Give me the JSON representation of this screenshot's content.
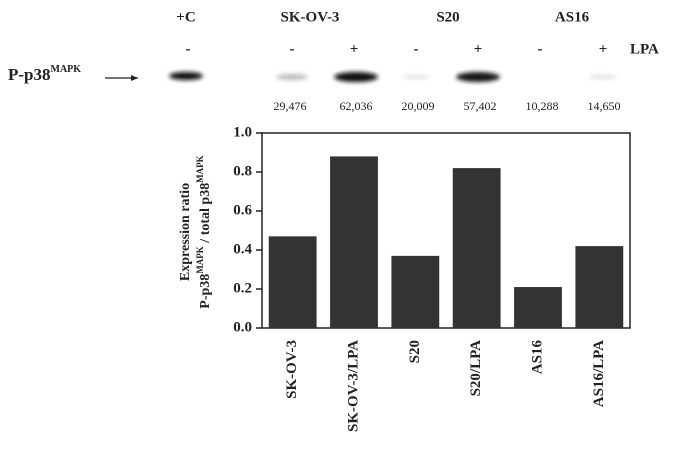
{
  "blot": {
    "lanes": [
      "+C",
      "SK-OV-3",
      "S20",
      "AS16"
    ],
    "signs": [
      "-",
      "-",
      "+",
      "-",
      "+",
      "-",
      "+"
    ],
    "treatment": "LPA",
    "row_label": [
      "P-p38",
      "MAPK"
    ],
    "densities": [
      "29,476",
      "62,036",
      "20,009",
      "57,402",
      "10,288",
      "14,650"
    ]
  },
  "chart_data": {
    "type": "bar",
    "ylabel": [
      "Expression ratio",
      "P-p38",
      "MAPK",
      " / total p38",
      "MAPK"
    ],
    "categories": [
      "SK-OV-3",
      "SK-OV-3/LPA",
      "S20",
      "S20/LPA",
      "AS16",
      "AS16/LPA"
    ],
    "values": [
      0.47,
      0.88,
      0.37,
      0.82,
      0.21,
      0.42
    ],
    "color": "#333333",
    "ylim": [
      0,
      1.0
    ],
    "yticks": [
      {
        "value": 0,
        "label": "0.0"
      },
      0.2,
      0.4,
      0.6,
      0.8,
      {
        "value": 1.0,
        "label": "1.0"
      }
    ]
  }
}
